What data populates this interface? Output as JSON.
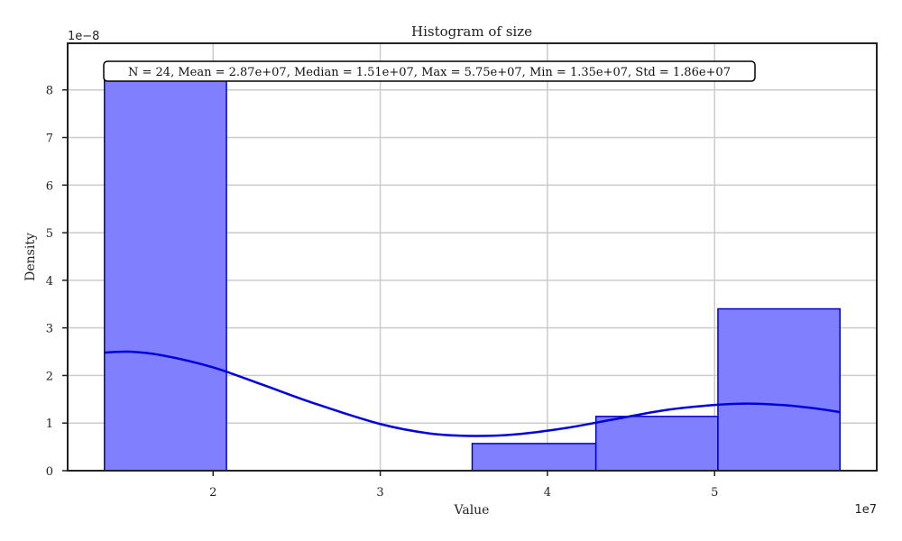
{
  "chart_data": {
    "type": "bar",
    "title": "Histogram of size",
    "xlabel": "Value",
    "ylabel": "Density",
    "x_multiplier": "1e7",
    "y_multiplier": "1e−8",
    "stats_text": "N = 24, Mean = 2.87e+07, Median = 1.51e+07, Max = 5.75e+07, Min = 1.35e+07, Std = 1.86e+07",
    "xlim": [
      11300000.0,
      59700000.0
    ],
    "ylim": [
      0,
      8.98e-08
    ],
    "xticks": [
      20000000.0,
      30000000.0,
      40000000.0,
      50000000.0
    ],
    "xtick_labels": [
      "2",
      "3",
      "4",
      "5"
    ],
    "yticks": [
      0,
      1e-08,
      2e-08,
      3e-08,
      4e-08,
      5e-08,
      6e-08,
      7e-08,
      8e-08
    ],
    "ytick_labels": [
      "0",
      "1",
      "2",
      "3",
      "4",
      "5",
      "6",
      "7",
      "8"
    ],
    "grid": true,
    "bins": [
      {
        "x0": 13500000.0,
        "x1": 20800000.0,
        "density": 8.2e-08
      },
      {
        "x0": 20800000.0,
        "x1": 28200000.0,
        "density": 0
      },
      {
        "x0": 28200000.0,
        "x1": 35500000.0,
        "density": 0
      },
      {
        "x0": 35500000.0,
        "x1": 42900000.0,
        "density": 5.7e-09
      },
      {
        "x0": 42900000.0,
        "x1": 50200000.0,
        "density": 1.14e-08
      },
      {
        "x0": 50200000.0,
        "x1": 57500000.0,
        "density": 3.4e-08
      }
    ],
    "kde": {
      "x": [
        13500000.0,
        15000000.0,
        17000000.0,
        20000000.0,
        23000000.0,
        26000000.0,
        30000000.0,
        33000000.0,
        35500000.0,
        38000000.0,
        41000000.0,
        44000000.0,
        47000000.0,
        50000000.0,
        52000000.0,
        54000000.0,
        56000000.0,
        57500000.0
      ],
      "y": [
        2.48e-08,
        2.5e-08,
        2.42e-08,
        2.17e-08,
        1.8e-08,
        1.42e-08,
        9.8e-09,
        7.8e-09,
        7.3e-09,
        7.6e-09,
        8.9e-09,
        1.08e-08,
        1.27e-08,
        1.38e-08,
        1.41e-08,
        1.38e-08,
        1.31e-08,
        1.23e-08
      ]
    },
    "colors": {
      "bar_fill": "#8080ff",
      "bar_edge": "#0000cc",
      "kde_line": "#0000dd",
      "grid": "#cccccc",
      "axes": "#222222"
    }
  }
}
